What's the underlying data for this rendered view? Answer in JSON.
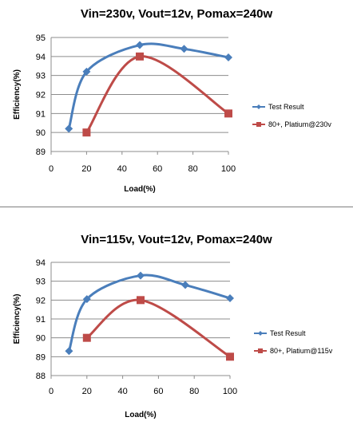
{
  "chart_data": [
    {
      "type": "line",
      "title": "Vin=230v, Vout=12v, Pomax=240w",
      "xlabel": "Load(%)",
      "ylabel": "Efficiency(%)",
      "xlim": [
        0,
        100
      ],
      "ylim": [
        89,
        95
      ],
      "xticks": [
        0,
        20,
        40,
        60,
        80,
        100
      ],
      "yticks": [
        89,
        90,
        91,
        92,
        93,
        94,
        95
      ],
      "grid": true,
      "legend_position": "right",
      "series": [
        {
          "name": "Test Result",
          "color": "#4a7ebb",
          "marker": "diamond",
          "points": [
            [
              10,
              90.2
            ],
            [
              20,
              93.2
            ],
            [
              50,
              94.6
            ],
            [
              75,
              94.4
            ],
            [
              100,
              93.95
            ]
          ]
        },
        {
          "name": "80+, Platium@230v",
          "color": "#be4b48",
          "marker": "square",
          "points": [
            [
              20,
              90
            ],
            [
              50,
              94
            ],
            [
              100,
              91
            ]
          ]
        }
      ]
    },
    {
      "type": "line",
      "title": "Vin=115v, Vout=12v, Pomax=240w",
      "xlabel": "Load(%)",
      "ylabel": "Efficiency(%)",
      "xlim": [
        0,
        100
      ],
      "ylim": [
        88,
        94
      ],
      "xticks": [
        0,
        20,
        40,
        60,
        80,
        100
      ],
      "yticks": [
        88,
        89,
        90,
        91,
        92,
        93,
        94
      ],
      "grid": true,
      "legend_position": "right",
      "series": [
        {
          "name": "Test Result",
          "color": "#4a7ebb",
          "marker": "diamond",
          "points": [
            [
              10,
              89.3
            ],
            [
              20,
              92.05
            ],
            [
              50,
              93.3
            ],
            [
              75,
              92.8
            ],
            [
              100,
              92.1
            ]
          ]
        },
        {
          "name": "80+, Platium@115v",
          "color": "#be4b48",
          "marker": "square",
          "points": [
            [
              20,
              90
            ],
            [
              50,
              92
            ],
            [
              100,
              89
            ]
          ]
        }
      ]
    }
  ]
}
